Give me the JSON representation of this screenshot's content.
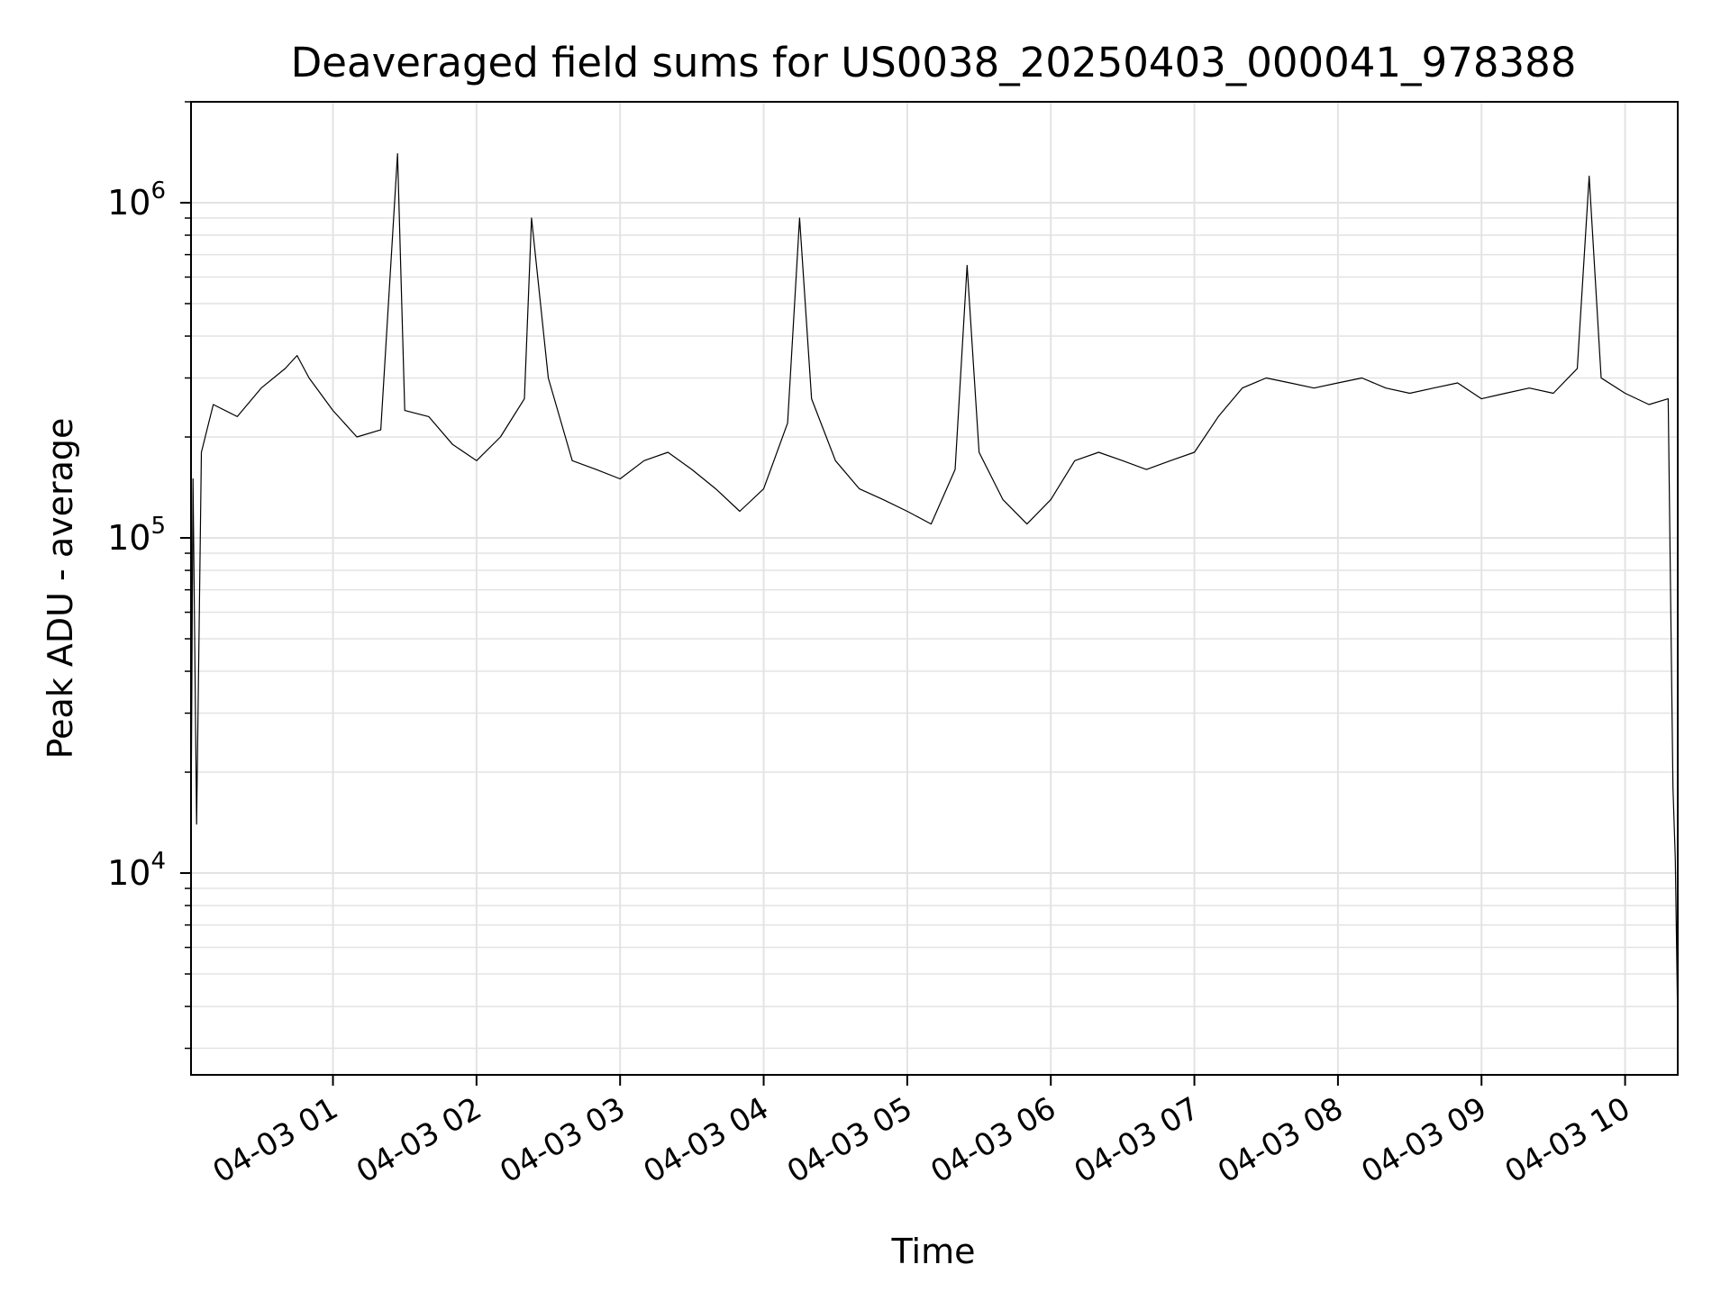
{
  "chart_data": {
    "type": "line",
    "title": "Deaveraged field sums for US0038_20250403_000041_978388",
    "xlabel": "Time",
    "ylabel": "Peak ADU - average",
    "yscale": "log",
    "ylim": [
      2500,
      2000000
    ],
    "xlim": [
      "2025-04-03T00:00:41",
      "2025-04-03T10:22:00"
    ],
    "x_ticks": [
      "2025-04-03T01:00",
      "2025-04-03T02:00",
      "2025-04-03T03:00",
      "2025-04-03T04:00",
      "2025-04-03T05:00",
      "2025-04-03T06:00",
      "2025-04-03T07:00",
      "2025-04-03T08:00",
      "2025-04-03T09:00",
      "2025-04-03T10:00"
    ],
    "x_tick_labels": [
      "04-03 01",
      "04-03 02",
      "04-03 03",
      "04-03 04",
      "04-03 05",
      "04-03 06",
      "04-03 07",
      "04-03 08",
      "04-03 09",
      "04-03 10"
    ],
    "y_ticks": [
      10000,
      100000,
      1000000
    ],
    "y_tick_labels": [
      {
        "base": "10",
        "exp": "4"
      },
      {
        "base": "10",
        "exp": "5"
      },
      {
        "base": "10",
        "exp": "6"
      }
    ],
    "grid": true,
    "line_color": "#000000",
    "series": [
      {
        "x": [
          "2025-04-03T00:00:41",
          "2025-04-03T00:01:30",
          "2025-04-03T00:03:00",
          "2025-04-03T00:05:00",
          "2025-04-03T00:10:00",
          "2025-04-03T00:20:00",
          "2025-04-03T00:30:00",
          "2025-04-03T00:40:00",
          "2025-04-03T00:45:00",
          "2025-04-03T00:50:00",
          "2025-04-03T01:00:00",
          "2025-04-03T01:10:00",
          "2025-04-03T01:20:00",
          "2025-04-03T01:27:00",
          "2025-04-03T01:30:00",
          "2025-04-03T01:40:00",
          "2025-04-03T01:50:00",
          "2025-04-03T02:00:00",
          "2025-04-03T02:10:00",
          "2025-04-03T02:20:00",
          "2025-04-03T02:23:00",
          "2025-04-03T02:30:00",
          "2025-04-03T02:40:00",
          "2025-04-03T02:50:00",
          "2025-04-03T03:00:00",
          "2025-04-03T03:10:00",
          "2025-04-03T03:20:00",
          "2025-04-03T03:30:00",
          "2025-04-03T03:40:00",
          "2025-04-03T03:50:00",
          "2025-04-03T04:00:00",
          "2025-04-03T04:10:00",
          "2025-04-03T04:15:00",
          "2025-04-03T04:20:00",
          "2025-04-03T04:30:00",
          "2025-04-03T04:40:00",
          "2025-04-03T04:50:00",
          "2025-04-03T05:00:00",
          "2025-04-03T05:10:00",
          "2025-04-03T05:20:00",
          "2025-04-03T05:25:00",
          "2025-04-03T05:30:00",
          "2025-04-03T05:40:00",
          "2025-04-03T05:50:00",
          "2025-04-03T06:00:00",
          "2025-04-03T06:10:00",
          "2025-04-03T06:20:00",
          "2025-04-03T06:30:00",
          "2025-04-03T06:40:00",
          "2025-04-03T06:50:00",
          "2025-04-03T07:00:00",
          "2025-04-03T07:10:00",
          "2025-04-03T07:20:00",
          "2025-04-03T07:30:00",
          "2025-04-03T07:40:00",
          "2025-04-03T07:50:00",
          "2025-04-03T08:00:00",
          "2025-04-03T08:10:00",
          "2025-04-03T08:20:00",
          "2025-04-03T08:30:00",
          "2025-04-03T08:40:00",
          "2025-04-03T08:50:00",
          "2025-04-03T09:00:00",
          "2025-04-03T09:10:00",
          "2025-04-03T09:20:00",
          "2025-04-03T09:30:00",
          "2025-04-03T09:40:00",
          "2025-04-03T09:45:00",
          "2025-04-03T09:50:00",
          "2025-04-03T10:00:00",
          "2025-04-03T10:10:00",
          "2025-04-03T10:18:00",
          "2025-04-03T10:20:00",
          "2025-04-03T10:21:00",
          "2025-04-03T10:22:00"
        ],
        "y": [
          13000,
          150000,
          14000,
          180000,
          250000,
          230000,
          280000,
          320000,
          350000,
          300000,
          240000,
          200000,
          210000,
          1400000,
          240000,
          230000,
          190000,
          170000,
          200000,
          260000,
          900000,
          300000,
          170000,
          160000,
          150000,
          170000,
          180000,
          160000,
          140000,
          120000,
          140000,
          220000,
          900000,
          260000,
          170000,
          140000,
          130000,
          120000,
          110000,
          160000,
          650000,
          180000,
          130000,
          110000,
          130000,
          170000,
          180000,
          170000,
          160000,
          170000,
          180000,
          230000,
          280000,
          300000,
          290000,
          280000,
          290000,
          300000,
          280000,
          270000,
          280000,
          290000,
          260000,
          270000,
          280000,
          270000,
          320000,
          1200000,
          300000,
          270000,
          250000,
          260000,
          18000,
          11000,
          3500
        ]
      }
    ]
  }
}
